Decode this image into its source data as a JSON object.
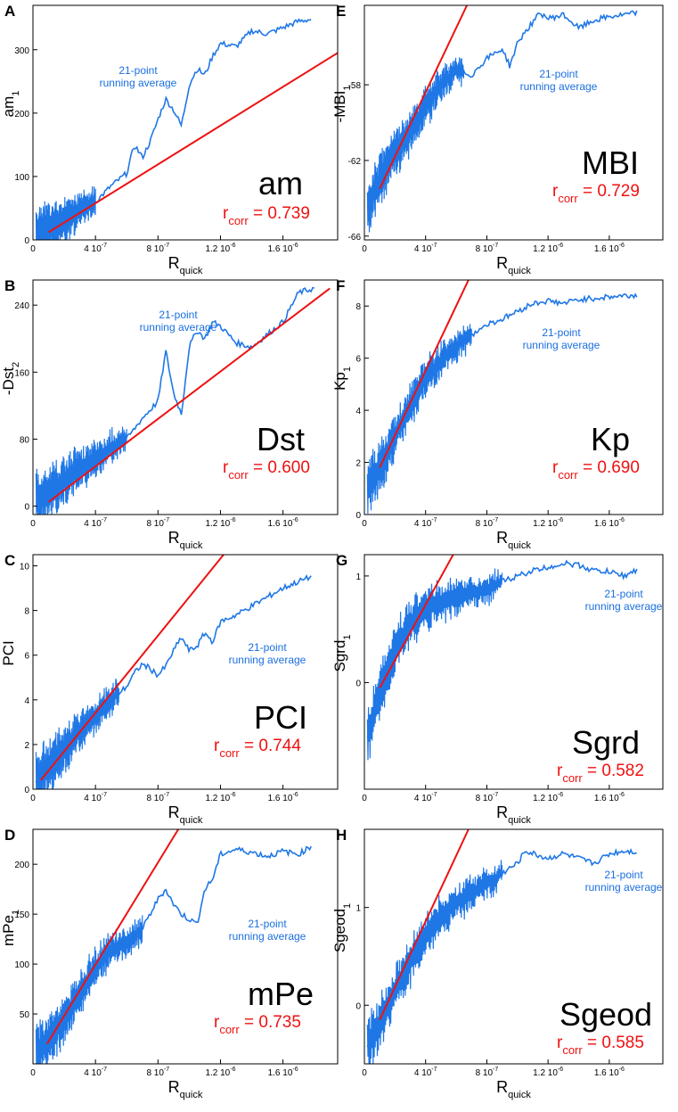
{
  "figure": {
    "title": ""
  },
  "colors": {
    "data": "#1f77e6",
    "fit": "#ee1111",
    "axis": "#000000",
    "annot": "#1a6fe0",
    "corr": "#ee1111"
  },
  "common": {
    "xlabel_main": "R",
    "xlabel_sub": "quick",
    "xticks": [
      "0",
      "4 10",
      "8 10",
      "1.2 10",
      "1.6 10"
    ],
    "xtick_exps": [
      "",
      "-7",
      "-7",
      "-6",
      "-6"
    ],
    "xtick_values": [
      0,
      4e-07,
      8e-07,
      1.2e-06,
      1.6e-06
    ],
    "running_avg_line1": "21-point",
    "running_avg_line2": "running average",
    "r_main": "r",
    "r_sub": "corr"
  },
  "chart_data": [
    {
      "letter": "A",
      "type": "line",
      "name": "am",
      "ylabel_main": "am",
      "ylabel_sub": "1",
      "ylabel_prefix": "",
      "xlim": [
        0,
        1.95e-06
      ],
      "ylim": [
        0,
        370
      ],
      "yticks": [
        0,
        100,
        200,
        300
      ],
      "ytick_labels": [
        "0",
        "100",
        "200",
        "300"
      ],
      "corr_value": "= 0.739",
      "curve": [
        [
          2e-08,
          10
        ],
        [
          1e-07,
          18
        ],
        [
          2e-07,
          28
        ],
        [
          3e-07,
          48
        ],
        [
          4e-07,
          60
        ],
        [
          5e-07,
          85
        ],
        [
          6e-07,
          105
        ],
        [
          6.5e-07,
          150
        ],
        [
          7e-07,
          130
        ],
        [
          7.5e-07,
          155
        ],
        [
          8e-07,
          190
        ],
        [
          8.5e-07,
          222
        ],
        [
          9e-07,
          205
        ],
        [
          9.5e-07,
          180
        ],
        [
          1e-06,
          245
        ],
        [
          1.05e-06,
          270
        ],
        [
          1.1e-06,
          260
        ],
        [
          1.15e-06,
          290
        ],
        [
          1.2e-06,
          310
        ],
        [
          1.3e-06,
          305
        ],
        [
          1.4e-06,
          330
        ],
        [
          1.5e-06,
          325
        ],
        [
          1.6e-06,
          335
        ],
        [
          1.7e-06,
          345
        ],
        [
          1.78e-06,
          348
        ]
      ],
      "fit": [
        [
          1e-07,
          12
        ],
        [
          1.95e-06,
          295
        ]
      ],
      "noise_x": [
        2e-08,
        4e-07
      ],
      "noise_y": [
        0,
        70
      ]
    },
    {
      "letter": "B",
      "type": "line",
      "name": "Dst",
      "ylabel_main": "-Dst",
      "ylabel_sub": "2",
      "ylabel_prefix": "",
      "xlim": [
        0,
        1.95e-06
      ],
      "ylim": [
        -10,
        270
      ],
      "yticks": [
        0,
        80,
        160,
        240
      ],
      "ytick_labels": [
        "0",
        "80",
        "160",
        "240"
      ],
      "corr_value": "= 0.600",
      "curve": [
        [
          2e-08,
          5
        ],
        [
          1e-07,
          15
        ],
        [
          2e-07,
          30
        ],
        [
          3e-07,
          45
        ],
        [
          4e-07,
          55
        ],
        [
          5e-07,
          70
        ],
        [
          6e-07,
          80
        ],
        [
          7e-07,
          105
        ],
        [
          7.5e-07,
          115
        ],
        [
          8e-07,
          125
        ],
        [
          8.5e-07,
          185
        ],
        [
          9e-07,
          135
        ],
        [
          9.5e-07,
          110
        ],
        [
          1e-06,
          190
        ],
        [
          1.05e-06,
          210
        ],
        [
          1.1e-06,
          200
        ],
        [
          1.15e-06,
          220
        ],
        [
          1.2e-06,
          215
        ],
        [
          1.3e-06,
          195
        ],
        [
          1.4e-06,
          190
        ],
        [
          1.5e-06,
          205
        ],
        [
          1.6e-06,
          220
        ],
        [
          1.7e-06,
          255
        ],
        [
          1.8e-06,
          260
        ]
      ],
      "fit": [
        [
          1e-07,
          5
        ],
        [
          1.9e-06,
          260
        ]
      ],
      "noise_x": [
        2e-08,
        6e-07
      ],
      "noise_y": [
        -10,
        100
      ]
    },
    {
      "letter": "C",
      "type": "line",
      "name": "PCI",
      "ylabel_main": "PCI",
      "ylabel_sub": "",
      "ylabel_prefix": "",
      "xlim": [
        0,
        1.95e-06
      ],
      "ylim": [
        0,
        10.5
      ],
      "yticks": [
        0,
        2,
        4,
        6,
        8,
        10
      ],
      "ytick_labels": [
        "0",
        "2",
        "4",
        "6",
        "8",
        "10"
      ],
      "corr_value": "= 0.744",
      "curve": [
        [
          2e-08,
          0.4
        ],
        [
          1e-07,
          1
        ],
        [
          2e-07,
          1.8
        ],
        [
          3e-07,
          2.6
        ],
        [
          4e-07,
          3.3
        ],
        [
          5e-07,
          4
        ],
        [
          6e-07,
          4.6
        ],
        [
          6.5e-07,
          5.2
        ],
        [
          7e-07,
          5.6
        ],
        [
          7.5e-07,
          5.4
        ],
        [
          8e-07,
          5.1
        ],
        [
          8.5e-07,
          5.5
        ],
        [
          9e-07,
          6.2
        ],
        [
          9.5e-07,
          6.8
        ],
        [
          1e-06,
          6.2
        ],
        [
          1.05e-06,
          6.4
        ],
        [
          1.1e-06,
          7
        ],
        [
          1.15e-06,
          6.6
        ],
        [
          1.2e-06,
          7.5
        ],
        [
          1.3e-06,
          7.8
        ],
        [
          1.4e-06,
          8.2
        ],
        [
          1.5e-06,
          8.6
        ],
        [
          1.6e-06,
          9
        ],
        [
          1.7e-06,
          9.3
        ],
        [
          1.78e-06,
          9.5
        ]
      ],
      "fit": [
        [
          5e-08,
          0.4
        ],
        [
          1.22e-06,
          10.5
        ]
      ],
      "noise_x": [
        2e-08,
        5.5e-07
      ],
      "noise_y": [
        0,
        5
      ]
    },
    {
      "letter": "D",
      "type": "line",
      "name": "mPe",
      "ylabel_main": "mPe",
      "ylabel_sub": "1",
      "ylabel_prefix": "",
      "xlim": [
        0,
        1.95e-06
      ],
      "ylim": [
        0,
        235
      ],
      "yticks": [
        50,
        100,
        150,
        200
      ],
      "ytick_labels": [
        "50",
        "100",
        "150",
        "200"
      ],
      "corr_value": "= 0.735",
      "curve": [
        [
          2e-08,
          10
        ],
        [
          1e-07,
          25
        ],
        [
          2e-07,
          45
        ],
        [
          3e-07,
          70
        ],
        [
          4e-07,
          95
        ],
        [
          5e-07,
          115
        ],
        [
          6e-07,
          120
        ],
        [
          7e-07,
          135
        ],
        [
          7.5e-07,
          150
        ],
        [
          8e-07,
          165
        ],
        [
          8.5e-07,
          175
        ],
        [
          9e-07,
          160
        ],
        [
          9.5e-07,
          150
        ],
        [
          1e-06,
          145
        ],
        [
          1.05e-06,
          140
        ],
        [
          1.1e-06,
          175
        ],
        [
          1.15e-06,
          185
        ],
        [
          1.2e-06,
          210
        ],
        [
          1.3e-06,
          215
        ],
        [
          1.4e-06,
          212
        ],
        [
          1.5e-06,
          208
        ],
        [
          1.6e-06,
          213
        ],
        [
          1.7e-06,
          210
        ],
        [
          1.78e-06,
          218
        ]
      ],
      "fit": [
        [
          9e-08,
          20
        ],
        [
          9.3e-07,
          235
        ]
      ],
      "noise_x": [
        2e-08,
        7e-07
      ],
      "noise_y": [
        0,
        130
      ]
    },
    {
      "letter": "E",
      "type": "line",
      "name": "MBI",
      "ylabel_main": "MBI",
      "ylabel_sub": "1",
      "ylabel_prefix": "-",
      "xlim": [
        0,
        1.95e-06
      ],
      "ylim": [
        -66.2,
        -53.8
      ],
      "yticks": [
        -66,
        -62,
        -58
      ],
      "ytick_labels": [
        "-66",
        "-62",
        "-58"
      ],
      "corr_value": "= 0.729",
      "curve": [
        [
          2e-08,
          -64.5
        ],
        [
          1e-07,
          -63
        ],
        [
          2e-07,
          -61.6
        ],
        [
          3e-07,
          -60.4
        ],
        [
          4e-07,
          -59.2
        ],
        [
          5e-07,
          -58
        ],
        [
          6e-07,
          -57.2
        ],
        [
          7e-07,
          -57.5
        ],
        [
          8e-07,
          -56.6
        ],
        [
          9e-07,
          -56.1
        ],
        [
          9.5e-07,
          -57
        ],
        [
          1e-06,
          -55.8
        ],
        [
          1.05e-06,
          -55.2
        ],
        [
          1.1e-06,
          -54.7
        ],
        [
          1.15e-06,
          -54.2
        ],
        [
          1.2e-06,
          -54.5
        ],
        [
          1.3e-06,
          -54.3
        ],
        [
          1.4e-06,
          -55
        ],
        [
          1.5e-06,
          -54.6
        ],
        [
          1.6e-06,
          -54.4
        ],
        [
          1.7e-06,
          -54.3
        ],
        [
          1.78e-06,
          -54.2
        ]
      ],
      "fit": [
        [
          1e-07,
          -63.5
        ],
        [
          6.7e-07,
          -53.8
        ]
      ],
      "noise_x": [
        2e-08,
        6.5e-07
      ],
      "noise_y": [
        -66,
        -56.5
      ]
    },
    {
      "letter": "F",
      "type": "line",
      "name": "Kp",
      "ylabel_main": "Kp",
      "ylabel_sub": "1",
      "ylabel_prefix": "",
      "xlim": [
        0,
        1.95e-06
      ],
      "ylim": [
        0,
        9
      ],
      "yticks": [
        0,
        2,
        4,
        6,
        8
      ],
      "ytick_labels": [
        "0",
        "2",
        "4",
        "6",
        "8"
      ],
      "corr_value": "= 0.690",
      "curve": [
        [
          2e-08,
          1.1
        ],
        [
          1e-07,
          1.8
        ],
        [
          2e-07,
          3
        ],
        [
          3e-07,
          4.2
        ],
        [
          4e-07,
          5.2
        ],
        [
          5e-07,
          5.9
        ],
        [
          6e-07,
          6.5
        ],
        [
          7e-07,
          6.9
        ],
        [
          8e-07,
          7.3
        ],
        [
          9e-07,
          7.5
        ],
        [
          1e-06,
          7.8
        ],
        [
          1.1e-06,
          8.1
        ],
        [
          1.2e-06,
          8.2
        ],
        [
          1.3e-06,
          8.1
        ],
        [
          1.4e-06,
          8.25
        ],
        [
          1.5e-06,
          8.3
        ],
        [
          1.6e-06,
          8.35
        ],
        [
          1.7e-06,
          8.4
        ],
        [
          1.78e-06,
          8.4
        ]
      ],
      "fit": [
        [
          1e-07,
          1.8
        ],
        [
          6.8e-07,
          9
        ]
      ],
      "noise_x": [
        2e-08,
        7e-07
      ],
      "noise_y": [
        0.3,
        7
      ]
    },
    {
      "letter": "G",
      "type": "line",
      "name": "Sgrd",
      "ylabel_main": "Sgrd",
      "ylabel_sub": "1",
      "ylabel_prefix": "",
      "xlim": [
        0,
        1.95e-06
      ],
      "ylim": [
        -1.0,
        1.2
      ],
      "yticks": [
        0,
        1
      ],
      "ytick_labels": [
        "0",
        "1"
      ],
      "corr_value": "= 0.582",
      "curve": [
        [
          2e-08,
          -0.5
        ],
        [
          1e-07,
          -0.1
        ],
        [
          2e-07,
          0.3
        ],
        [
          3e-07,
          0.55
        ],
        [
          4e-07,
          0.7
        ],
        [
          5e-07,
          0.75
        ],
        [
          6e-07,
          0.8
        ],
        [
          7e-07,
          0.85
        ],
        [
          8e-07,
          0.88
        ],
        [
          9e-07,
          0.95
        ],
        [
          1e-06,
          1.0
        ],
        [
          1.1e-06,
          1.05
        ],
        [
          1.2e-06,
          1.08
        ],
        [
          1.3e-06,
          1.12
        ],
        [
          1.4e-06,
          1.1
        ],
        [
          1.5e-06,
          1.05
        ],
        [
          1.6e-06,
          1.04
        ],
        [
          1.7e-06,
          1.0
        ],
        [
          1.78e-06,
          1.06
        ]
      ],
      "fit": [
        [
          1e-07,
          -0.05
        ],
        [
          5.8e-07,
          1.2
        ]
      ],
      "noise_x": [
        2e-08,
        9e-07
      ],
      "noise_y": [
        -0.95,
        0.95
      ]
    },
    {
      "letter": "H",
      "type": "line",
      "name": "Sgeod",
      "ylabel_main": "Sgeod",
      "ylabel_sub": "1",
      "ylabel_prefix": "",
      "xlim": [
        0,
        1.95e-06
      ],
      "ylim": [
        -0.6,
        1.8
      ],
      "yticks": [
        0,
        1
      ],
      "ytick_labels": [
        "0",
        "1"
      ],
      "corr_value": "= 0.585",
      "curve": [
        [
          2e-08,
          -0.4
        ],
        [
          1e-07,
          -0.2
        ],
        [
          2e-07,
          0.15
        ],
        [
          3e-07,
          0.45
        ],
        [
          4e-07,
          0.7
        ],
        [
          5e-07,
          0.9
        ],
        [
          6e-07,
          1.05
        ],
        [
          7e-07,
          1.15
        ],
        [
          8e-07,
          1.25
        ],
        [
          9e-07,
          1.35
        ],
        [
          1e-06,
          1.45
        ],
        [
          1.05e-06,
          1.58
        ],
        [
          1.1e-06,
          1.55
        ],
        [
          1.2e-06,
          1.5
        ],
        [
          1.3e-06,
          1.55
        ],
        [
          1.4e-06,
          1.5
        ],
        [
          1.5e-06,
          1.45
        ],
        [
          1.6e-06,
          1.55
        ],
        [
          1.7e-06,
          1.58
        ],
        [
          1.78e-06,
          1.57
        ]
      ],
      "fit": [
        [
          1e-07,
          -0.15
        ],
        [
          6.8e-07,
          1.8
        ]
      ],
      "noise_x": [
        2e-08,
        9e-07
      ],
      "noise_y": [
        -0.55,
        1.3
      ]
    }
  ]
}
